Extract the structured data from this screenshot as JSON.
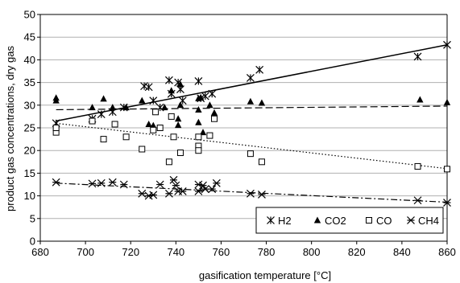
{
  "chart_data": {
    "type": "scatter",
    "xlabel": "gasification temperature [°C]",
    "ylabel": "product gas concentrations, dry gas",
    "xlim": [
      680,
      860
    ],
    "ylim": [
      0,
      50
    ],
    "xticks": [
      "680",
      "700",
      "720",
      "740",
      "760",
      "780",
      "800",
      "820",
      "840",
      "860"
    ],
    "yticks": [
      "0",
      "5",
      "10",
      "15",
      "20",
      "25",
      "30",
      "35",
      "40",
      "45",
      "50"
    ],
    "grid": "horizontal",
    "legend_position": "bottom-right",
    "series": [
      {
        "name": "H2",
        "marker": "asterisk-x",
        "trend": "solid",
        "trend_line": [
          [
            687,
            26.5
          ],
          [
            860,
            43.3
          ]
        ],
        "points": [
          [
            687,
            26
          ],
          [
            703,
            27
          ],
          [
            707,
            28
          ],
          [
            712,
            28.5
          ],
          [
            717,
            29.5
          ],
          [
            726,
            34.2
          ],
          [
            728,
            34
          ],
          [
            730,
            31
          ],
          [
            733,
            29.5
          ],
          [
            737,
            35.5
          ],
          [
            738,
            32.5
          ],
          [
            741,
            35
          ],
          [
            742,
            33.5
          ],
          [
            743,
            31
          ],
          [
            750,
            35.3
          ],
          [
            751,
            31.5
          ],
          [
            753,
            32
          ],
          [
            756,
            32.5
          ],
          [
            773,
            36
          ],
          [
            777,
            37.8
          ],
          [
            847,
            40.7
          ],
          [
            860,
            43.3
          ]
        ]
      },
      {
        "name": "CO2",
        "marker": "triangle",
        "trend": "dashed",
        "trend_line": [
          [
            687,
            29.0
          ],
          [
            860,
            29.8
          ]
        ],
        "points": [
          [
            687,
            31.6
          ],
          [
            687,
            31
          ],
          [
            703,
            29.5
          ],
          [
            708,
            31.4
          ],
          [
            712,
            29.5
          ],
          [
            718,
            29.5
          ],
          [
            725,
            31
          ],
          [
            728,
            25.8
          ],
          [
            730,
            25.5
          ],
          [
            735,
            29.5
          ],
          [
            738,
            33.2
          ],
          [
            741,
            27
          ],
          [
            741,
            25.6
          ],
          [
            742,
            30
          ],
          [
            742,
            34.6
          ],
          [
            750,
            29
          ],
          [
            750,
            31.5
          ],
          [
            750,
            26.2
          ],
          [
            751,
            31.7
          ],
          [
            752,
            24
          ],
          [
            755,
            30
          ],
          [
            757,
            28.3
          ],
          [
            757,
            27
          ],
          [
            773,
            30.8
          ],
          [
            778,
            30.5
          ],
          [
            848,
            31.2
          ],
          [
            860,
            30.6
          ]
        ]
      },
      {
        "name": "CO",
        "marker": "square-open",
        "trend": "dotted",
        "trend_line": [
          [
            687,
            26.0
          ],
          [
            860,
            16.0
          ]
        ],
        "points": [
          [
            687,
            24
          ],
          [
            687,
            25
          ],
          [
            703,
            26.5
          ],
          [
            708,
            22.5
          ],
          [
            713,
            25.8
          ],
          [
            718,
            23
          ],
          [
            725,
            20.3
          ],
          [
            730,
            24.5
          ],
          [
            731,
            28.5
          ],
          [
            733,
            25
          ],
          [
            737,
            17.5
          ],
          [
            738,
            27.5
          ],
          [
            739,
            23
          ],
          [
            742,
            19.5
          ],
          [
            750,
            23
          ],
          [
            750,
            21
          ],
          [
            750,
            20
          ],
          [
            755,
            23.3
          ],
          [
            757,
            27
          ],
          [
            773,
            19.3
          ],
          [
            778,
            17.5
          ],
          [
            847,
            16.5
          ],
          [
            860,
            15.9
          ]
        ]
      },
      {
        "name": "CH4",
        "marker": "asterisk-plus",
        "trend": "dash-dot",
        "trend_line": [
          [
            687,
            12.8
          ],
          [
            860,
            8.6
          ]
        ],
        "points": [
          [
            687,
            13
          ],
          [
            703,
            12.7
          ],
          [
            707,
            12.8
          ],
          [
            712,
            13
          ],
          [
            717,
            12.5
          ],
          [
            725,
            10.5
          ],
          [
            728,
            10
          ],
          [
            730,
            10.2
          ],
          [
            733,
            12.5
          ],
          [
            737,
            10.5
          ],
          [
            739,
            13.5
          ],
          [
            740,
            12.3
          ],
          [
            741,
            11
          ],
          [
            743,
            11
          ],
          [
            750,
            12.5
          ],
          [
            750,
            11
          ],
          [
            752,
            12.3
          ],
          [
            753,
            11.5
          ],
          [
            756,
            11.5
          ],
          [
            758,
            12.8
          ],
          [
            773,
            10.5
          ],
          [
            778,
            10.3
          ],
          [
            847,
            9
          ],
          [
            860,
            8.5
          ]
        ]
      }
    ],
    "style": {
      "marker_color": "#000000",
      "line_color": "#000000",
      "grid_color": "#b0b0b0"
    }
  }
}
